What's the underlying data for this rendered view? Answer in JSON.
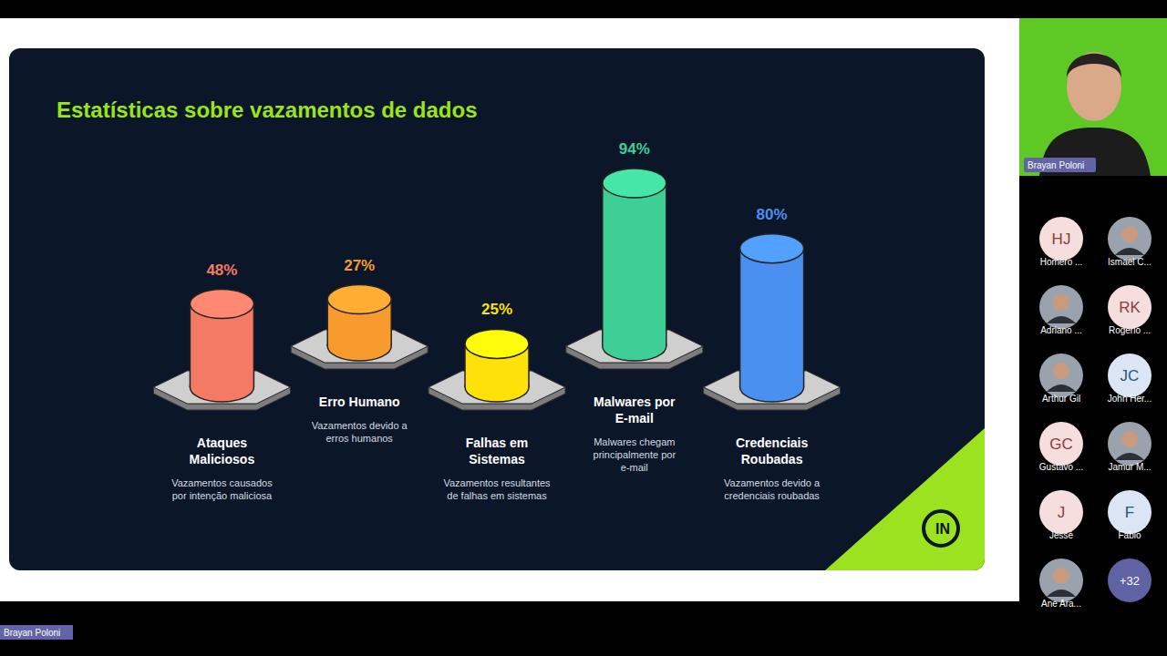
{
  "screen": {
    "presenter": "Brayan Poloni",
    "logo": "IN",
    "participants": [
      {
        "name": "Homero ...",
        "initials": "HJ"
      },
      {
        "name": "Ismael C..."
      },
      {
        "name": "Adriano ..."
      },
      {
        "name": "Rogerio ...",
        "initials": "RK"
      },
      {
        "name": "Arthur Gil"
      },
      {
        "name": "John Her...",
        "initials": "JC"
      },
      {
        "name": "Gustavo ...",
        "initials": "GC"
      },
      {
        "name": "Jamur M..."
      },
      {
        "name": "Jessé",
        "initials": "J"
      },
      {
        "name": "Fabio",
        "initials": "F"
      },
      {
        "name": "Ane Ara..."
      }
    ],
    "more_participants": "+32"
  },
  "chart_data": {
    "type": "bar",
    "title": "Estatísticas sobre vazamentos de dados",
    "categories": [
      "Ataques Maliciosos",
      "Erro Humano",
      "Falhas em Sistemas",
      "Malwares por E-mail",
      "Credenciais Roubadas"
    ],
    "values": [
      48,
      27,
      25,
      94,
      80
    ],
    "value_labels": [
      "48%",
      "27%",
      "25%",
      "94%",
      "80%"
    ],
    "annotations": [
      "Vazamentos causados por intenção maliciosa",
      "Vazamentos devido a erros humanos",
      "Vazamentos resultantes de falhas em sistemas",
      "Malwares chegam principalmente por e-mail",
      "Vazamentos devido a credenciais roubadas"
    ],
    "colors": [
      "#f47a66",
      "#f89b2e",
      "#fde20a",
      "#3ecf96",
      "#4a90f0"
    ],
    "data_labels": true,
    "tick_labels": false
  }
}
